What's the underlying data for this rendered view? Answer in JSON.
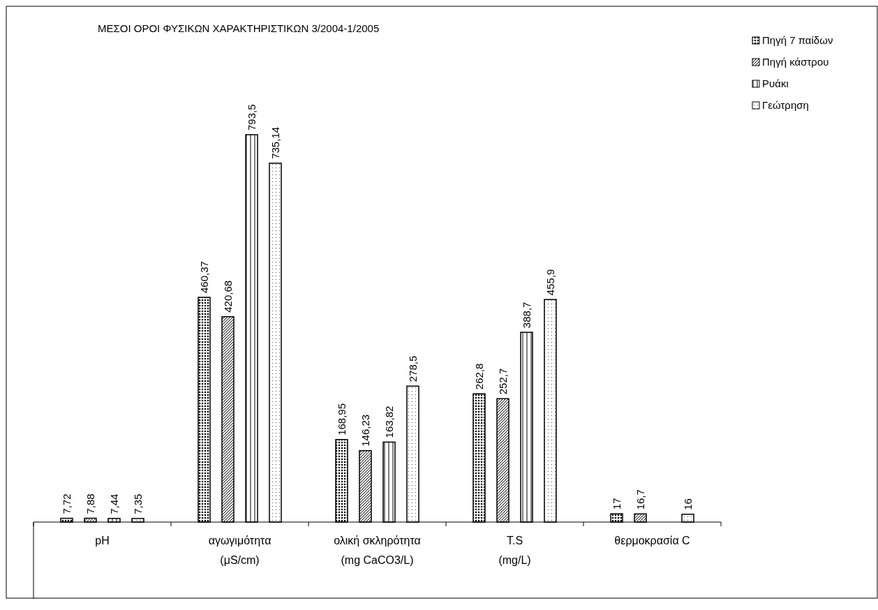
{
  "chart_data": {
    "type": "bar",
    "title": "ΜΕΣΟΙ ΟΡΟΙ ΦΥΣΙΚΩΝ ΧΑΡΑΚΤΗΡΙΣΤΙΚΩΝ 3/2004-1/2005",
    "categories": [
      "pH",
      "αγωγιμότητα (μS/cm)",
      "ολική σκληρότητα (mg CaCO3/L)",
      "T.S (mg/L)",
      "θερμοκρασία C"
    ],
    "series": [
      {
        "name": "Πηγή 7 παίδων",
        "color": "#000000",
        "values": [
          7.72,
          460.37,
          168.95,
          262.8,
          17
        ],
        "value_labels": [
          "7,72",
          "460,37",
          "168,95",
          "262,8",
          "17"
        ]
      },
      {
        "name": "Πηγή κάστρου",
        "color": "#000000",
        "values": [
          7.88,
          420.68,
          146.23,
          252.7,
          16.7
        ],
        "value_labels": [
          "7,88",
          "420,68",
          "146,23",
          "252,7",
          "16,7"
        ]
      },
      {
        "name": "Ρυάκι",
        "color": "#000000",
        "values": [
          7.44,
          793.5,
          163.82,
          388.7,
          null
        ],
        "value_labels": [
          "7,44",
          "793,5",
          "163,82",
          "388,7",
          null
        ]
      },
      {
        "name": "Γεώτρηση",
        "color": "#000000",
        "values": [
          7.35,
          735.14,
          278.5,
          455.9,
          16
        ],
        "value_labels": [
          "7,35",
          "735,14",
          "278,5",
          "455,9",
          "16"
        ]
      }
    ],
    "legend": "top right"
  }
}
